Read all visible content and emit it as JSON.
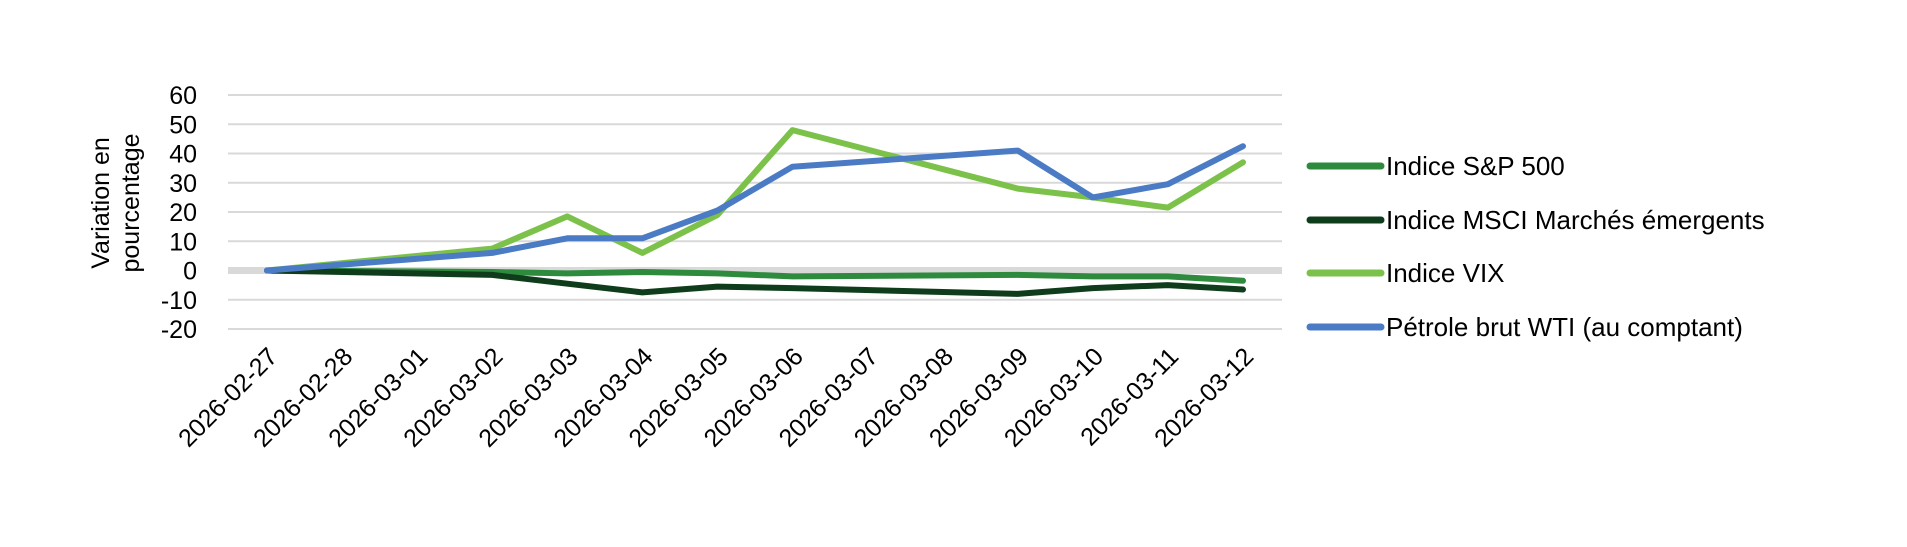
{
  "chart_data": {
    "type": "line",
    "ylabel": [
      "Variation en",
      "pourcentage"
    ],
    "ylim": [
      -20,
      60
    ],
    "yticks": [
      -20,
      -10,
      0,
      10,
      20,
      30,
      40,
      50,
      60
    ],
    "grid": true,
    "legend_position": "right",
    "categories": [
      "2026-02-27",
      "2026-02-28",
      "2026-03-01",
      "2026-03-02",
      "2026-03-03",
      "2026-03-04",
      "2026-03-05",
      "2026-03-06",
      "2026-03-07",
      "2026-03-08",
      "2026-03-09",
      "2026-03-10",
      "2026-03-11",
      "2026-03-12"
    ],
    "series": [
      {
        "name": "Indice S&P 500",
        "color": "#2e8b3e",
        "points": [
          [
            "2026-02-27",
            0
          ],
          [
            "2026-03-02",
            -0.5
          ],
          [
            "2026-03-03",
            -1
          ],
          [
            "2026-03-04",
            -0.5
          ],
          [
            "2026-03-05",
            -1
          ],
          [
            "2026-03-06",
            -2
          ],
          [
            "2026-03-09",
            -1.5
          ],
          [
            "2026-03-10",
            -2
          ],
          [
            "2026-03-11",
            -2
          ],
          [
            "2026-03-12",
            -3.5
          ]
        ]
      },
      {
        "name": "Indice MSCI Marchés émergents",
        "color": "#0f3d1c",
        "points": [
          [
            "2026-02-27",
            0
          ],
          [
            "2026-03-02",
            -1.5
          ],
          [
            "2026-03-03",
            -4.5
          ],
          [
            "2026-03-04",
            -7.5
          ],
          [
            "2026-03-05",
            -5.5
          ],
          [
            "2026-03-06",
            -6
          ],
          [
            "2026-03-09",
            -8
          ],
          [
            "2026-03-10",
            -6
          ],
          [
            "2026-03-11",
            -5
          ],
          [
            "2026-03-12",
            -6.5
          ]
        ]
      },
      {
        "name": "Indice VIX",
        "color": "#7cc24a",
        "points": [
          [
            "2026-02-27",
            0
          ],
          [
            "2026-03-02",
            7.5
          ],
          [
            "2026-03-03",
            18.5
          ],
          [
            "2026-03-04",
            6
          ],
          [
            "2026-03-05",
            19
          ],
          [
            "2026-03-06",
            48
          ],
          [
            "2026-03-09",
            28
          ],
          [
            "2026-03-10",
            25
          ],
          [
            "2026-03-11",
            21.5
          ],
          [
            "2026-03-12",
            37
          ]
        ]
      },
      {
        "name": "Pétrole brut WTI (au comptant)",
        "color": "#4a7bc4",
        "points": [
          [
            "2026-02-27",
            0
          ],
          [
            "2026-03-02",
            6
          ],
          [
            "2026-03-03",
            11
          ],
          [
            "2026-03-04",
            11
          ],
          [
            "2026-03-05",
            20.5
          ],
          [
            "2026-03-06",
            35.5
          ],
          [
            "2026-03-09",
            41
          ],
          [
            "2026-03-10",
            25
          ],
          [
            "2026-03-11",
            29.5
          ],
          [
            "2026-03-12",
            42.5
          ]
        ]
      }
    ],
    "colors": {
      "grid": "#d9d9d9",
      "zero_line": "#d9d9d9"
    }
  }
}
